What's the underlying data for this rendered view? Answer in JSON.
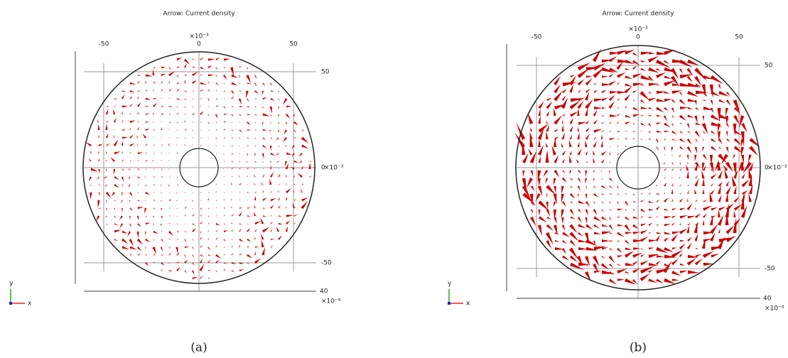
{
  "panels": [
    {
      "title": "Arrow: Current density",
      "x_exponent": "×10⁻³",
      "x_ticks": [
        "-50",
        "0",
        "50"
      ],
      "y_ticks": [
        "50",
        "0",
        "-50"
      ],
      "y_exponent": "×10⁻³",
      "bottom_tick": "40",
      "bottom_exponent": "×10⁻⁴",
      "axis_x": "x",
      "axis_y": "y",
      "caption": "(a)"
    },
    {
      "title": "Arrow: Current density",
      "x_exponent": "×10⁻³",
      "x_ticks": [
        "-50",
        "0",
        "50"
      ],
      "y_ticks": [
        "50",
        "0",
        "-50"
      ],
      "y_exponent": "×10⁻³",
      "bottom_tick": "40",
      "bottom_exponent": "×10⁻⁴",
      "axis_x": "x",
      "axis_y": "y",
      "caption": "(b)"
    }
  ]
}
